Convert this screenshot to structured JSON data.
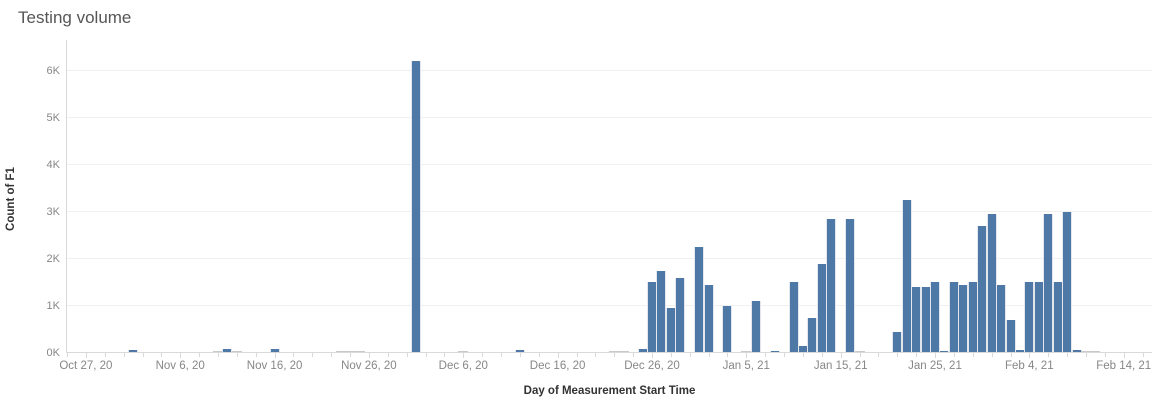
{
  "header": {
    "title": "Testing volume"
  },
  "colors": {
    "bar": "#4e79a7",
    "zero_bar": "#c9c9c9",
    "gridline": "#f0f0f0",
    "axis_line": "#d9d9d9",
    "tick_label": "#878787",
    "axis_title": "#333333",
    "title": "#565656"
  },
  "chart_data": {
    "type": "bar",
    "title": "Testing volume",
    "xlabel": "Day of Measurement Start Time",
    "ylabel": "Count of F1",
    "grid": "horizontal",
    "legend": "none",
    "ylim": [
      0,
      6650
    ],
    "xlim": [
      "2020-10-25",
      "2021-02-17"
    ],
    "y_ticks": [
      {
        "value": 0,
        "label": "0K"
      },
      {
        "value": 1000,
        "label": "1K"
      },
      {
        "value": 2000,
        "label": "2K"
      },
      {
        "value": 3000,
        "label": "3K"
      },
      {
        "value": 4000,
        "label": "4K"
      },
      {
        "value": 5000,
        "label": "5K"
      },
      {
        "value": 6000,
        "label": "6K"
      }
    ],
    "x_ticks": [
      {
        "date": "2020-10-27",
        "label": "Oct 27, 20"
      },
      {
        "date": "2020-11-06",
        "label": "Nov 6, 20"
      },
      {
        "date": "2020-11-16",
        "label": "Nov 16, 20"
      },
      {
        "date": "2020-11-26",
        "label": "Nov 26, 20"
      },
      {
        "date": "2020-12-06",
        "label": "Dec 6, 20"
      },
      {
        "date": "2020-12-16",
        "label": "Dec 16, 20"
      },
      {
        "date": "2020-12-26",
        "label": "Dec 26, 20"
      },
      {
        "date": "2021-01-05",
        "label": "Jan 5, 21"
      },
      {
        "date": "2021-01-15",
        "label": "Jan 15, 21"
      },
      {
        "date": "2021-01-25",
        "label": "Jan 25, 21"
      },
      {
        "date": "2021-02-04",
        "label": "Feb 4, 21"
      },
      {
        "date": "2021-02-14",
        "label": "Feb 14, 21"
      }
    ],
    "bars": [
      {
        "date": "2020-11-01",
        "value": 70
      },
      {
        "date": "2020-11-10",
        "value": 0
      },
      {
        "date": "2020-11-11",
        "value": 80
      },
      {
        "date": "2020-11-12",
        "value": 0
      },
      {
        "date": "2020-11-16",
        "value": 80
      },
      {
        "date": "2020-11-23",
        "value": 0
      },
      {
        "date": "2020-11-24",
        "value": 0
      },
      {
        "date": "2020-11-25",
        "value": 0
      },
      {
        "date": "2020-12-01",
        "value": 6200
      },
      {
        "date": "2020-12-06",
        "value": 0
      },
      {
        "date": "2020-12-12",
        "value": 60
      },
      {
        "date": "2020-12-22",
        "value": 0
      },
      {
        "date": "2020-12-23",
        "value": 0
      },
      {
        "date": "2020-12-25",
        "value": 80
      },
      {
        "date": "2020-12-26",
        "value": 1500
      },
      {
        "date": "2020-12-27",
        "value": 1750
      },
      {
        "date": "2020-12-28",
        "value": 950
      },
      {
        "date": "2020-12-29",
        "value": 1600
      },
      {
        "date": "2020-12-31",
        "value": 2250
      },
      {
        "date": "2021-01-01",
        "value": 1450
      },
      {
        "date": "2021-01-03",
        "value": 1000
      },
      {
        "date": "2021-01-05",
        "value": 0
      },
      {
        "date": "2021-01-06",
        "value": 1100
      },
      {
        "date": "2021-01-08",
        "value": 30
      },
      {
        "date": "2021-01-10",
        "value": 1500
      },
      {
        "date": "2021-01-11",
        "value": 150
      },
      {
        "date": "2021-01-12",
        "value": 750
      },
      {
        "date": "2021-01-13",
        "value": 1900
      },
      {
        "date": "2021-01-14",
        "value": 2850
      },
      {
        "date": "2021-01-16",
        "value": 2850
      },
      {
        "date": "2021-01-17",
        "value": 0
      },
      {
        "date": "2021-01-21",
        "value": 450
      },
      {
        "date": "2021-01-22",
        "value": 3250
      },
      {
        "date": "2021-01-23",
        "value": 1400
      },
      {
        "date": "2021-01-24",
        "value": 1400
      },
      {
        "date": "2021-01-25",
        "value": 1500
      },
      {
        "date": "2021-01-26",
        "value": 50
      },
      {
        "date": "2021-01-27",
        "value": 1500
      },
      {
        "date": "2021-01-28",
        "value": 1450
      },
      {
        "date": "2021-01-29",
        "value": 1500
      },
      {
        "date": "2021-01-30",
        "value": 2700
      },
      {
        "date": "2021-01-31",
        "value": 2950
      },
      {
        "date": "2021-02-01",
        "value": 1450
      },
      {
        "date": "2021-02-02",
        "value": 700
      },
      {
        "date": "2021-02-03",
        "value": 70
      },
      {
        "date": "2021-02-04",
        "value": 1500
      },
      {
        "date": "2021-02-05",
        "value": 1500
      },
      {
        "date": "2021-02-06",
        "value": 2950
      },
      {
        "date": "2021-02-07",
        "value": 1500
      },
      {
        "date": "2021-02-08",
        "value": 3000
      },
      {
        "date": "2021-02-09",
        "value": 60
      },
      {
        "date": "2021-02-10",
        "value": 0
      },
      {
        "date": "2021-02-11",
        "value": 0
      }
    ]
  }
}
